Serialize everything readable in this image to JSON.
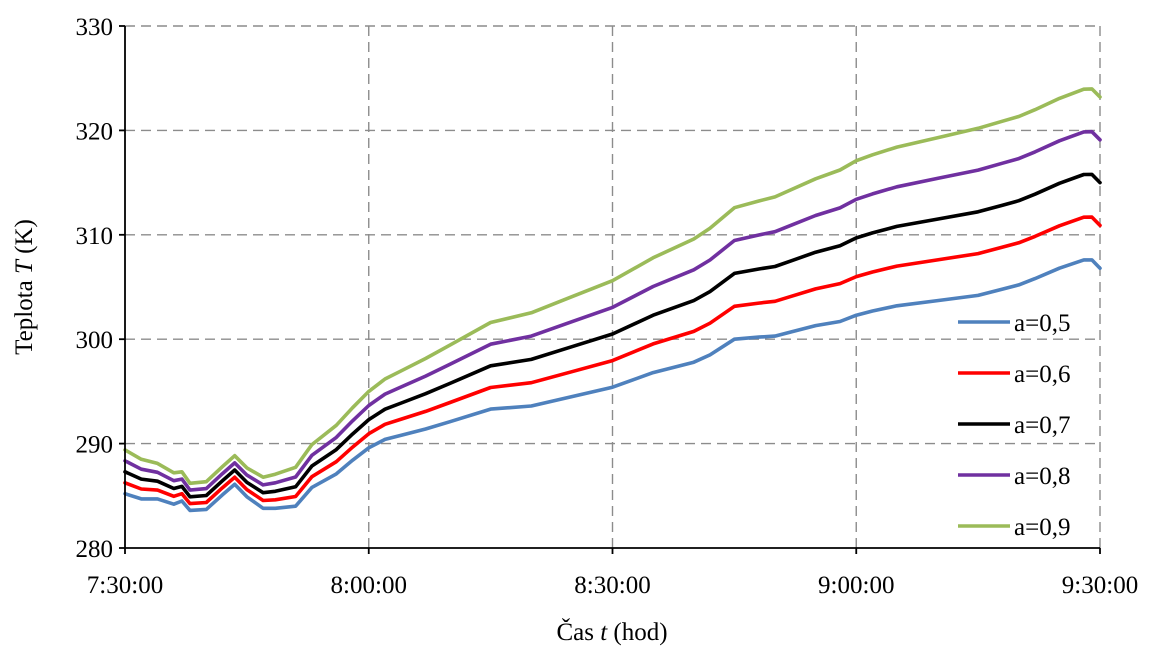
{
  "chart_data": {
    "type": "line",
    "x_tick_labels": [
      "7:30:00",
      "8:00:00",
      "8:30:00",
      "9:00:00",
      "9:30:00"
    ],
    "x_ticks_minutes": [
      0,
      30,
      60,
      90,
      120
    ],
    "xlim_minutes": [
      0,
      120
    ],
    "ylim": [
      280,
      330
    ],
    "y_ticks": [
      280,
      290,
      300,
      310,
      320,
      330
    ],
    "y_tick_labels": [
      "280",
      "290",
      "300",
      "310",
      "320",
      "330"
    ],
    "xlabel_prefix": "Čas ",
    "xlabel_var": "t",
    "xlabel_suffix": " (hod)",
    "ylabel_prefix": "Teplota ",
    "ylabel_var": "T",
    "ylabel_suffix": " (K)",
    "grid": "dashed, both axes",
    "legend_position": "bottom-right, inside",
    "x": [
      0,
      2,
      4,
      6,
      7,
      8,
      10,
      12,
      13.5,
      15,
      17,
      18.5,
      21,
      23,
      26,
      28,
      30,
      32,
      34,
      37,
      40,
      45,
      50,
      55,
      60,
      65,
      70,
      72,
      75,
      78,
      80,
      82,
      85,
      88,
      90,
      92,
      95,
      100,
      105,
      108,
      110,
      112,
      115,
      118,
      119,
      120
    ],
    "base_values": [
      285.2,
      284.7,
      284.7,
      284.2,
      284.5,
      283.6,
      283.7,
      285.1,
      286.1,
      284.9,
      283.8,
      283.8,
      284.0,
      285.8,
      287.1,
      288.4,
      289.6,
      290.4,
      290.8,
      291.4,
      292.1,
      293.3,
      293.6,
      294.5,
      295.4,
      296.8,
      297.8,
      298.5,
      300.0,
      300.2,
      300.3,
      300.7,
      301.3,
      301.7,
      302.3,
      302.7,
      303.2,
      303.7,
      304.2,
      304.8,
      305.2,
      305.8,
      306.8,
      307.6,
      307.6,
      306.8
    ],
    "series": [
      {
        "name": "a=0,5",
        "color": "#4f81bd",
        "offset_scale": 0.0
      },
      {
        "name": "a=0,6",
        "color": "#ff0000",
        "offset_scale": 0.25
      },
      {
        "name": "a=0,7",
        "color": "#000000",
        "offset_scale": 0.5
      },
      {
        "name": "a=0,8",
        "color": "#7030a0",
        "offset_scale": 0.75
      },
      {
        "name": "a=0,9",
        "color": "#9bbb59",
        "offset_scale": 1.0
      }
    ],
    "spread_by_x": {
      "x": [
        0,
        8,
        16,
        30,
        45,
        60,
        75,
        90,
        105,
        120
      ],
      "spread": [
        4.2,
        2.6,
        2.8,
        5.4,
        8.3,
        10.2,
        12.6,
        14.8,
        16.0,
        16.4
      ]
    }
  }
}
